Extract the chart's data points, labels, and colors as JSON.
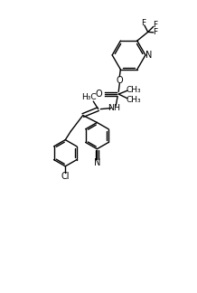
{
  "background_color": "#ffffff",
  "figsize": [
    2.18,
    3.24
  ],
  "dpi": 100,
  "lw": 1.0,
  "color": "#000000",
  "xlim": [
    0,
    10
  ],
  "ylim": [
    0,
    15
  ]
}
